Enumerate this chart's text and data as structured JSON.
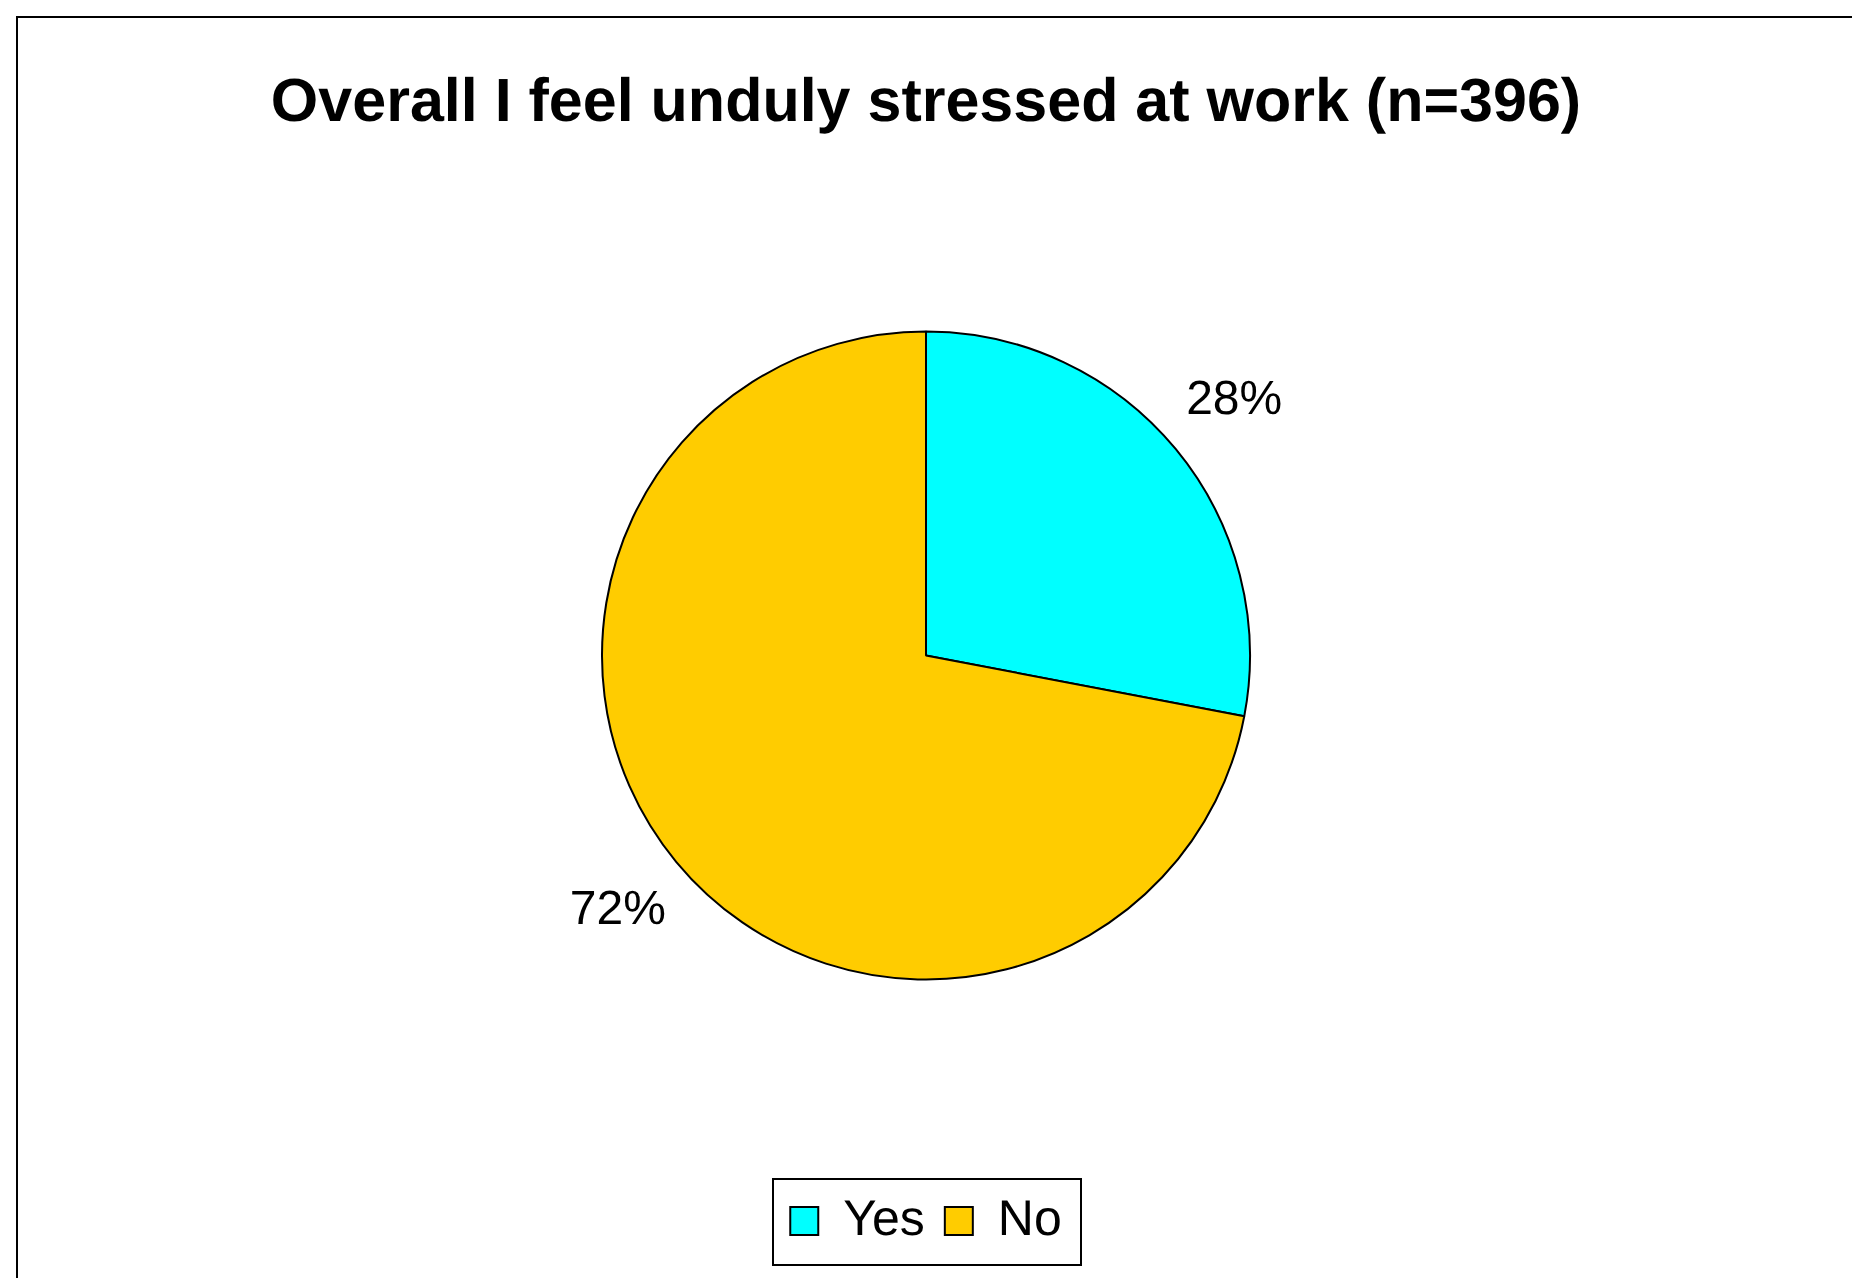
{
  "chart_data": {
    "type": "pie",
    "title": "Overall I feel unduly stressed at work (n=396)",
    "categories": [
      "Yes",
      "No"
    ],
    "values": [
      28,
      72
    ],
    "colors": [
      "#00ffff",
      "#ffcc00"
    ],
    "value_labels": [
      "28%",
      "72%"
    ],
    "legend": "bottom"
  }
}
